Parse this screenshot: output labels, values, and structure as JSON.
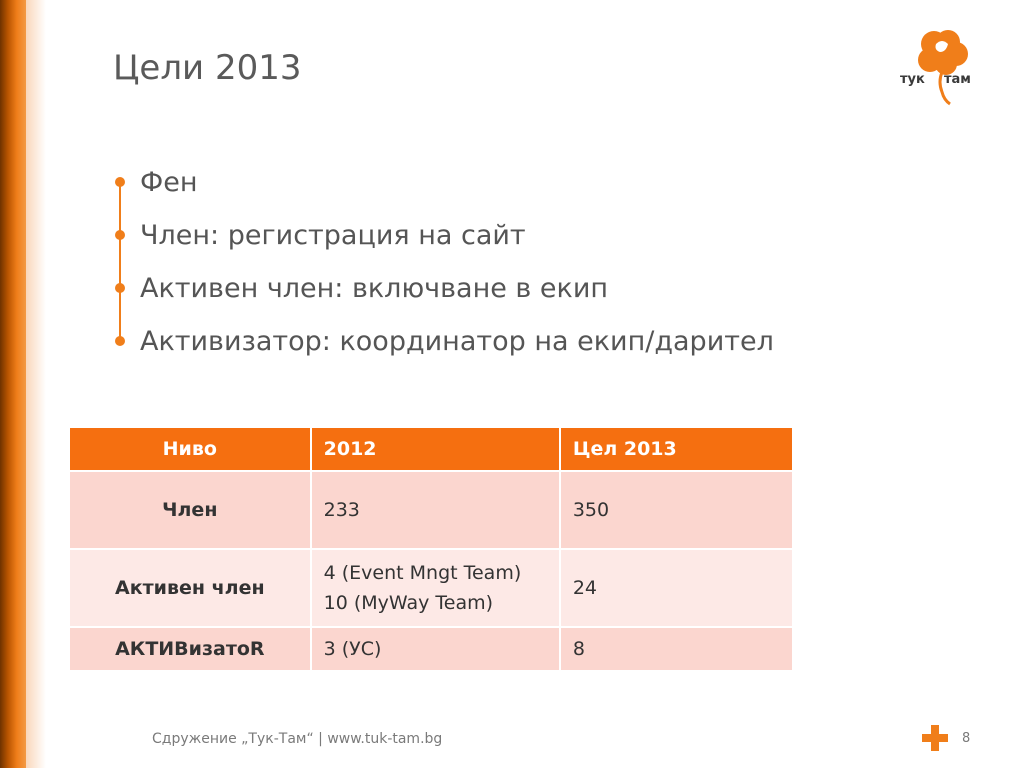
{
  "slide": {
    "title": "Цели 2013",
    "logo": {
      "text_left": "тук",
      "text_right": "там",
      "icon": "tree-logo-icon"
    },
    "bullets": [
      "Фен",
      "Член: регистрация на сайт",
      "Активен член: включване в екип",
      "Активизатор: координатор на екип/дарител"
    ],
    "table": {
      "headers": [
        "Ниво",
        "2012",
        "Цел 2013"
      ],
      "rows": [
        {
          "level": "Член",
          "y2012": [
            "233"
          ],
          "goal2013": "350"
        },
        {
          "level": "Активен член",
          "y2012": [
            "4 (Event Mngt Team)",
            "10 (MyWay Team)"
          ],
          "goal2013": "24"
        },
        {
          "level": "АКТИВизатоR",
          "y2012": [
            "3 (УС)"
          ],
          "goal2013": "8"
        }
      ]
    },
    "footer": "Сдружение „Тук-Там“ | www.tuk-tam.bg",
    "page_number": "8",
    "colors": {
      "accent": "#f07e1a",
      "header_bg": "#f56f10",
      "row_dark": "#fbd6cf",
      "row_light": "#fde9e6"
    }
  }
}
